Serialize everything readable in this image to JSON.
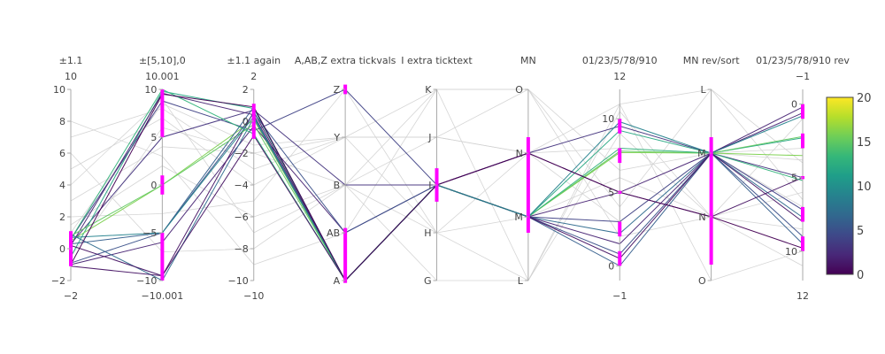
{
  "chart_data": {
    "type": "parallel-coordinates",
    "colorscale": {
      "name": "Viridis",
      "stops": [
        "#440154",
        "#482878",
        "#3e4989",
        "#31688e",
        "#26828e",
        "#1f9e89",
        "#35b779",
        "#6ece58",
        "#b5de2b",
        "#fde725"
      ],
      "cmin": 0,
      "cmax": 20,
      "ticks": [
        "0",
        "5",
        "10",
        "15",
        "20"
      ]
    },
    "constraint_color": "#ff00ff",
    "filtered_color": "#d0d0d0",
    "dimensions": [
      {
        "label": "±1.1",
        "range": [
          -2,
          10
        ],
        "top_label": "10",
        "bottom_label": "−2",
        "ticks": [
          {
            "v": 10,
            "t": "10"
          },
          {
            "v": 8,
            "t": "8"
          },
          {
            "v": 6,
            "t": "6"
          },
          {
            "v": 4,
            "t": "4"
          },
          {
            "v": 2,
            "t": "2"
          },
          {
            "v": 0,
            "t": "0"
          },
          {
            "v": -2,
            "t": "−2"
          }
        ],
        "constraints": [
          [
            -1.1,
            1.1
          ]
        ]
      },
      {
        "label": "±[5,10],0",
        "range": [
          -10.001,
          10.001
        ],
        "top_label": "10.001",
        "bottom_label": "−10.001",
        "ticks": [
          {
            "v": 10,
            "t": "10"
          },
          {
            "v": 5,
            "t": "5"
          },
          {
            "v": 0,
            "t": "0"
          },
          {
            "v": -5,
            "t": "−5"
          },
          {
            "v": -10,
            "t": "−10"
          }
        ],
        "constraints": [
          [
            5,
            10
          ],
          [
            -1,
            1
          ],
          [
            -10,
            -5
          ]
        ]
      },
      {
        "label": "±1.1 again",
        "range": [
          -10,
          2
        ],
        "top_label": "2",
        "bottom_label": "−10",
        "ticks": [
          {
            "v": 2,
            "t": "2"
          },
          {
            "v": 0,
            "t": "0"
          },
          {
            "v": -2,
            "t": "−2"
          },
          {
            "v": -4,
            "t": "−4"
          },
          {
            "v": -6,
            "t": "−6"
          },
          {
            "v": -8,
            "t": "−8"
          },
          {
            "v": -10,
            "t": "−10"
          }
        ],
        "constraints": [
          [
            -1.1,
            1.1
          ]
        ]
      },
      {
        "label": "A,AB,Z extra tickvals",
        "range": [
          0,
          4
        ],
        "top_label": "",
        "bottom_label": "",
        "ticks": [
          {
            "v": 4,
            "t": "Z"
          },
          {
            "v": 3,
            "t": "Y"
          },
          {
            "v": 2,
            "t": "B"
          },
          {
            "v": 1,
            "t": "AB"
          },
          {
            "v": 0,
            "t": "A"
          }
        ],
        "constraints": [
          [
            3.9,
            4.1
          ],
          [
            -0.05,
            1.1
          ]
        ]
      },
      {
        "label": "I extra ticktext",
        "range": [
          0,
          4
        ],
        "top_label": "",
        "bottom_label": "",
        "ticks": [
          {
            "v": 4,
            "t": "K"
          },
          {
            "v": 3,
            "t": "J"
          },
          {
            "v": 2,
            "t": "I"
          },
          {
            "v": 1,
            "t": "H"
          },
          {
            "v": 0,
            "t": "G"
          }
        ],
        "constraints": [
          [
            1.65,
            2.35
          ]
        ]
      },
      {
        "label": "MN",
        "range": [
          0,
          3
        ],
        "top_label": "",
        "bottom_label": "",
        "ticks": [
          {
            "v": 3,
            "t": "O"
          },
          {
            "v": 2,
            "t": "N"
          },
          {
            "v": 1,
            "t": "M"
          },
          {
            "v": 0,
            "t": "L"
          }
        ],
        "constraints": [
          [
            0.75,
            2.25
          ]
        ]
      },
      {
        "label": "01/23/5/78/910",
        "range": [
          -1,
          12
        ],
        "top_label": "12",
        "bottom_label": "−1",
        "ticks": [
          {
            "v": 10,
            "t": "10"
          },
          {
            "v": 5,
            "t": "5"
          },
          {
            "v": 0,
            "t": "0"
          }
        ],
        "constraints": [
          [
            9,
            10
          ],
          [
            7,
            8
          ],
          [
            4.9,
            5.1
          ],
          [
            2,
            3
          ],
          [
            0,
            1
          ]
        ]
      },
      {
        "label": "MN rev/sort",
        "range": [
          0,
          3
        ],
        "top_label": "",
        "bottom_label": "",
        "ticks": [
          {
            "v": 3,
            "t": "L"
          },
          {
            "v": 2,
            "t": "M"
          },
          {
            "v": 1,
            "t": "N"
          },
          {
            "v": 0,
            "t": "O"
          }
        ],
        "constraints": [
          [
            0.25,
            2.25
          ]
        ]
      },
      {
        "label": "01/23/5/78/910 rev",
        "range": [
          12,
          -1
        ],
        "top_label": "−1",
        "bottom_label": "12",
        "ticks": [
          {
            "v": 0,
            "t": "0"
          },
          {
            "v": 5,
            "t": "5"
          },
          {
            "v": 10,
            "t": "10"
          }
        ],
        "constraints": [
          [
            0,
            1
          ],
          [
            2,
            3
          ],
          [
            4.9,
            5.1
          ],
          [
            7,
            8
          ],
          [
            9,
            10
          ]
        ]
      }
    ],
    "lines": [
      {
        "color": 3,
        "values": [
          0.3,
          5,
          0.7,
          2,
          2,
          2,
          9.5,
          2,
          5
        ]
      },
      {
        "color": 12,
        "values": [
          -0.5,
          9.8,
          0.8,
          0,
          2,
          1,
          9.2,
          2,
          2.3
        ]
      },
      {
        "color": 16,
        "values": [
          0.5,
          0,
          0.1,
          0,
          2,
          1,
          7.7,
          2,
          3.5
        ]
      },
      {
        "color": 2,
        "values": [
          -1,
          -6,
          -0.3,
          1,
          2,
          1,
          5,
          2,
          0.6
        ]
      },
      {
        "color": 7,
        "values": [
          0.9,
          -10,
          0.2,
          0,
          2,
          1,
          2.2,
          2,
          7.7
        ]
      },
      {
        "color": 6,
        "values": [
          0.3,
          -5,
          0.9,
          0,
          2,
          1,
          0,
          2,
          9.5
        ]
      },
      {
        "color": 1,
        "values": [
          -1.1,
          -9.5,
          0.6,
          0,
          2,
          2,
          5,
          1,
          5
        ]
      },
      {
        "color": 4,
        "values": [
          0.6,
          8.8,
          -0.6,
          4,
          2,
          1,
          3,
          2,
          7.2
        ]
      },
      {
        "color": 2,
        "values": [
          0.2,
          9.6,
          0.4,
          0,
          2,
          1,
          1.5,
          2,
          0.2
        ]
      },
      {
        "color": 15,
        "values": [
          0.8,
          0,
          -0.2,
          0,
          2,
          1,
          7.8,
          2,
          2.2
        ]
      },
      {
        "color": 5,
        "values": [
          -0.9,
          -5,
          0.5,
          1,
          2,
          1,
          0.8,
          2,
          9
        ]
      },
      {
        "color": 13,
        "values": [
          0.6,
          10,
          -0.8,
          0,
          2,
          1,
          8,
          2,
          5.2
        ]
      },
      {
        "color": 1,
        "values": [
          0.2,
          -9.5,
          -0.9,
          0,
          2,
          1,
          0.5,
          2,
          8
        ]
      },
      {
        "color": 9,
        "values": [
          0.7,
          -5,
          0.3,
          0,
          2,
          1,
          9.8,
          2,
          0.8
        ]
      },
      {
        "color": 0,
        "values": [
          -1,
          9.5,
          0.9,
          0,
          2,
          2,
          5,
          1,
          9.8
        ]
      },
      {
        "color": -1,
        "values": [
          3,
          4,
          -2,
          2,
          3,
          2,
          8,
          2,
          7
        ]
      },
      {
        "color": -1,
        "values": [
          5,
          7,
          -4,
          3,
          1,
          1,
          6,
          1,
          6
        ]
      },
      {
        "color": -1,
        "values": [
          1.5,
          2,
          -6,
          2,
          4,
          3,
          4,
          3,
          4
        ]
      },
      {
        "color": -1,
        "values": [
          7,
          8,
          -3,
          3,
          3,
          2,
          3,
          2,
          3
        ]
      },
      {
        "color": -1,
        "values": [
          2,
          -3,
          -5,
          4,
          1,
          0,
          9,
          1,
          11
        ]
      },
      {
        "color": -1,
        "values": [
          4,
          9,
          -7,
          2,
          0,
          0,
          11,
          0,
          10
        ]
      },
      {
        "color": -1,
        "values": [
          -0.5,
          6,
          -2,
          3,
          4,
          3,
          2,
          1,
          1
        ]
      },
      {
        "color": -1,
        "values": [
          6,
          -7,
          -8,
          2,
          1,
          2,
          11,
          3,
          6.5
        ]
      },
      {
        "color": -1,
        "values": [
          1,
          8.5,
          -1.5,
          3,
          3,
          3,
          6.5,
          2,
          3.8
        ]
      },
      {
        "color": -1,
        "values": [
          8,
          3,
          -9,
          1,
          4,
          0,
          10.5,
          1,
          8.5
        ]
      }
    ]
  }
}
